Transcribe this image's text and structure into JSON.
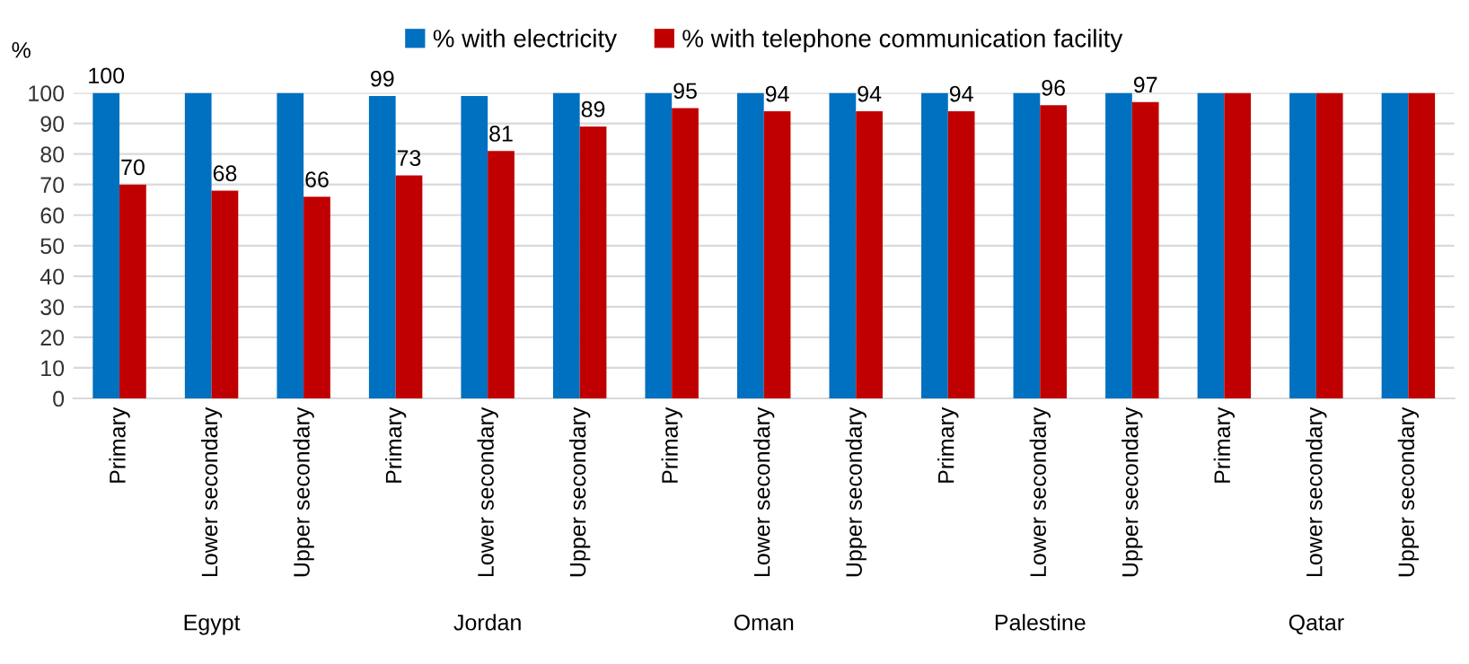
{
  "chart_data": {
    "type": "bar",
    "ylabel": "%",
    "categories": [
      "Primary",
      "Lower secondary",
      "Upper secondary",
      "Primary",
      "Lower secondary",
      "Upper secondary",
      "Primary",
      "Lower secondary",
      "Upper secondary",
      "Primary",
      "Lower secondary",
      "Upper secondary",
      "Primary",
      "Lower secondary",
      "Upper secondary"
    ],
    "annotations": [
      "Egypt",
      "Jordan",
      "Oman",
      "Palestine",
      "Qatar"
    ],
    "series": [
      {
        "name": "% with electricity",
        "color": "#0070c0",
        "values": [
          100,
          100,
          100,
          99,
          99,
          100,
          100,
          100,
          100,
          100,
          100,
          100,
          100,
          100,
          100
        ],
        "value_labels": [
          "100",
          null,
          null,
          "99",
          null,
          null,
          null,
          null,
          null,
          null,
          null,
          null,
          null,
          null,
          null
        ]
      },
      {
        "name": "% with telephone communication facility",
        "color": "#c00000",
        "values": [
          70,
          68,
          66,
          73,
          81,
          89,
          95,
          94,
          94,
          94,
          96,
          97,
          100,
          100,
          100
        ],
        "value_labels": [
          "70",
          "68",
          "66",
          "73",
          "81",
          "89",
          "95",
          "94",
          "94",
          "94",
          "96",
          "97",
          null,
          null,
          null
        ]
      }
    ],
    "ylim": [
      0,
      100
    ],
    "yticks": [
      0,
      10,
      20,
      30,
      40,
      50,
      60,
      70,
      80,
      90,
      100
    ],
    "grid": "y",
    "legend": "top"
  }
}
